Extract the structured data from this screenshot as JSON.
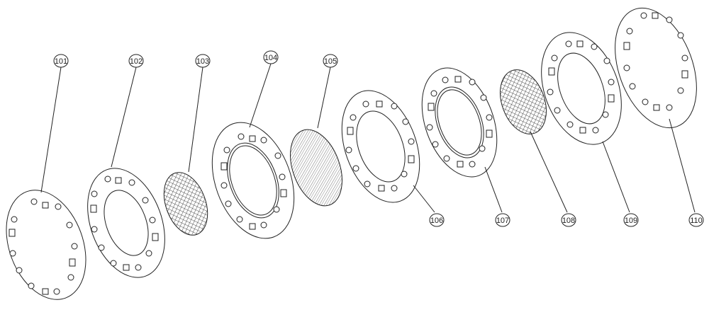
{
  "callouts": [
    {
      "id": "101",
      "label": "101"
    },
    {
      "id": "102",
      "label": "102"
    },
    {
      "id": "103",
      "label": "103"
    },
    {
      "id": "104",
      "label": "104"
    },
    {
      "id": "105",
      "label": "105"
    },
    {
      "id": "106",
      "label": "106"
    },
    {
      "id": "107",
      "label": "107"
    },
    {
      "id": "108",
      "label": "108"
    },
    {
      "id": "109",
      "label": "109"
    },
    {
      "id": "110",
      "label": "110"
    }
  ],
  "colors": {
    "line": "#222222",
    "background": "#ffffff"
  }
}
